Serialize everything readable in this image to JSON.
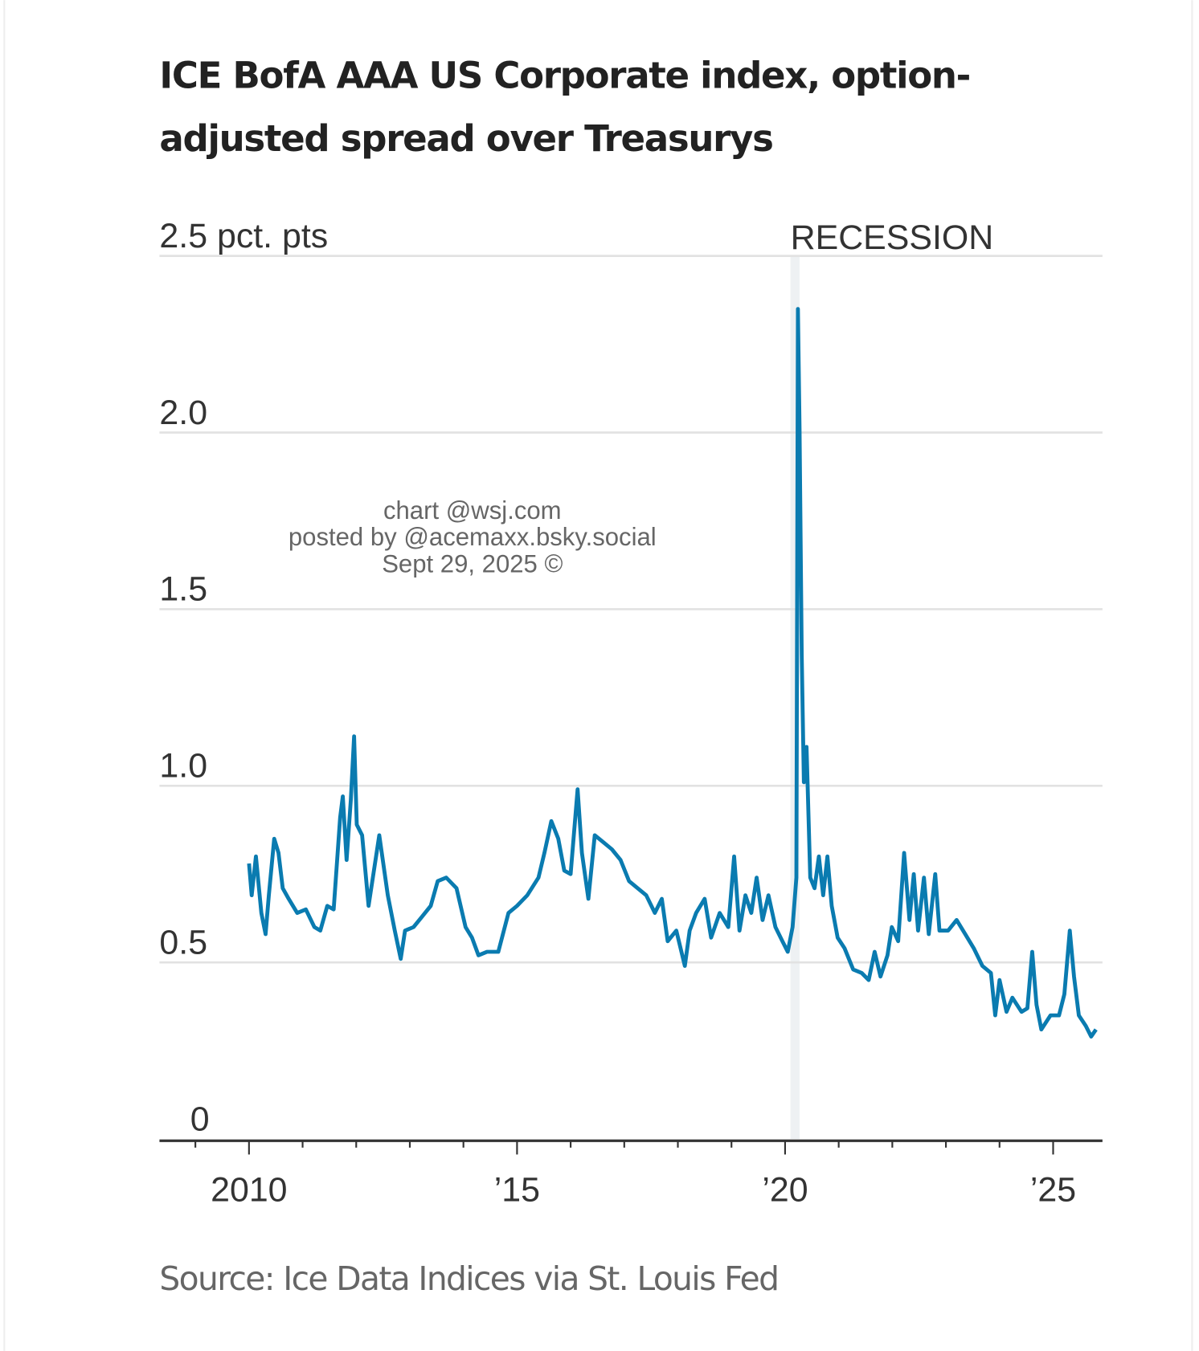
{
  "chart_data": {
    "type": "line",
    "title_lines": [
      "ICE BofA AAA US Corporate index, option-",
      "adjusted spread over Treasurys"
    ],
    "ylabel_unit": "pct. pts",
    "y_ticks": [
      0,
      0.5,
      1.0,
      1.5,
      2.0,
      2.5
    ],
    "y_tick_labels": [
      "0",
      "0.5",
      "1.0",
      "1.5",
      "2.0",
      "2.5 pct. pts"
    ],
    "ylim": [
      0,
      2.5
    ],
    "xlim": [
      2008.33,
      2025.92
    ],
    "x_ticks": [
      2010,
      2015,
      2020,
      2025
    ],
    "x_tick_labels": [
      "2010",
      "’15",
      "’20",
      "’25"
    ],
    "x_minor_ticks_every": 1,
    "grid": true,
    "recession": {
      "label": "RECESSION",
      "start": 2020.1,
      "end": 2020.27
    },
    "series": [
      {
        "name": "AAA option-adjusted spread",
        "color": "#0a7bb0",
        "points": [
          [
            2010.0,
            0.78
          ],
          [
            2010.05,
            0.69
          ],
          [
            2010.13,
            0.8
          ],
          [
            2010.23,
            0.64
          ],
          [
            2010.31,
            0.58
          ],
          [
            2010.37,
            0.69
          ],
          [
            2010.47,
            0.85
          ],
          [
            2010.55,
            0.81
          ],
          [
            2010.63,
            0.71
          ],
          [
            2010.74,
            0.68
          ],
          [
            2010.9,
            0.64
          ],
          [
            2011.06,
            0.65
          ],
          [
            2011.22,
            0.6
          ],
          [
            2011.33,
            0.59
          ],
          [
            2011.46,
            0.66
          ],
          [
            2011.58,
            0.65
          ],
          [
            2011.7,
            0.91
          ],
          [
            2011.75,
            0.97
          ],
          [
            2011.82,
            0.79
          ],
          [
            2011.9,
            0.96
          ],
          [
            2011.96,
            1.14
          ],
          [
            2012.01,
            0.89
          ],
          [
            2012.11,
            0.86
          ],
          [
            2012.23,
            0.66
          ],
          [
            2012.43,
            0.86
          ],
          [
            2012.59,
            0.69
          ],
          [
            2012.72,
            0.59
          ],
          [
            2012.83,
            0.51
          ],
          [
            2012.91,
            0.59
          ],
          [
            2013.07,
            0.6
          ],
          [
            2013.23,
            0.63
          ],
          [
            2013.39,
            0.66
          ],
          [
            2013.52,
            0.73
          ],
          [
            2013.68,
            0.74
          ],
          [
            2013.87,
            0.71
          ],
          [
            2014.04,
            0.6
          ],
          [
            2014.16,
            0.57
          ],
          [
            2014.28,
            0.52
          ],
          [
            2014.44,
            0.53
          ],
          [
            2014.65,
            0.53
          ],
          [
            2014.84,
            0.64
          ],
          [
            2015.0,
            0.66
          ],
          [
            2015.19,
            0.69
          ],
          [
            2015.4,
            0.74
          ],
          [
            2015.51,
            0.81
          ],
          [
            2015.64,
            0.9
          ],
          [
            2015.77,
            0.85
          ],
          [
            2015.88,
            0.76
          ],
          [
            2016.0,
            0.75
          ],
          [
            2016.13,
            0.99
          ],
          [
            2016.21,
            0.81
          ],
          [
            2016.33,
            0.68
          ],
          [
            2016.45,
            0.86
          ],
          [
            2016.61,
            0.84
          ],
          [
            2016.77,
            0.82
          ],
          [
            2016.93,
            0.79
          ],
          [
            2017.09,
            0.73
          ],
          [
            2017.25,
            0.71
          ],
          [
            2017.41,
            0.69
          ],
          [
            2017.57,
            0.64
          ],
          [
            2017.7,
            0.68
          ],
          [
            2017.81,
            0.56
          ],
          [
            2017.97,
            0.59
          ],
          [
            2018.13,
            0.49
          ],
          [
            2018.22,
            0.59
          ],
          [
            2018.34,
            0.64
          ],
          [
            2018.5,
            0.68
          ],
          [
            2018.62,
            0.57
          ],
          [
            2018.78,
            0.64
          ],
          [
            2018.94,
            0.6
          ],
          [
            2019.05,
            0.8
          ],
          [
            2019.15,
            0.59
          ],
          [
            2019.26,
            0.69
          ],
          [
            2019.37,
            0.64
          ],
          [
            2019.47,
            0.74
          ],
          [
            2019.58,
            0.62
          ],
          [
            2019.69,
            0.69
          ],
          [
            2019.82,
            0.6
          ],
          [
            2019.95,
            0.56
          ],
          [
            2020.05,
            0.53
          ],
          [
            2020.14,
            0.6
          ],
          [
            2020.21,
            0.74
          ],
          [
            2020.24,
            2.35
          ],
          [
            2020.27,
            2.01
          ],
          [
            2020.31,
            1.37
          ],
          [
            2020.35,
            1.01
          ],
          [
            2020.4,
            1.11
          ],
          [
            2020.47,
            0.74
          ],
          [
            2020.55,
            0.71
          ],
          [
            2020.63,
            0.8
          ],
          [
            2020.71,
            0.69
          ],
          [
            2020.79,
            0.8
          ],
          [
            2020.87,
            0.66
          ],
          [
            2020.98,
            0.57
          ],
          [
            2021.11,
            0.54
          ],
          [
            2021.27,
            0.48
          ],
          [
            2021.43,
            0.47
          ],
          [
            2021.56,
            0.45
          ],
          [
            2021.67,
            0.53
          ],
          [
            2021.78,
            0.46
          ],
          [
            2021.91,
            0.52
          ],
          [
            2021.99,
            0.6
          ],
          [
            2022.11,
            0.56
          ],
          [
            2022.22,
            0.81
          ],
          [
            2022.32,
            0.62
          ],
          [
            2022.4,
            0.75
          ],
          [
            2022.48,
            0.59
          ],
          [
            2022.59,
            0.74
          ],
          [
            2022.68,
            0.58
          ],
          [
            2022.8,
            0.75
          ],
          [
            2022.88,
            0.59
          ],
          [
            2023.04,
            0.59
          ],
          [
            2023.2,
            0.62
          ],
          [
            2023.36,
            0.58
          ],
          [
            2023.52,
            0.54
          ],
          [
            2023.68,
            0.49
          ],
          [
            2023.84,
            0.47
          ],
          [
            2023.92,
            0.35
          ],
          [
            2024.0,
            0.45
          ],
          [
            2024.13,
            0.36
          ],
          [
            2024.24,
            0.4
          ],
          [
            2024.41,
            0.36
          ],
          [
            2024.52,
            0.37
          ],
          [
            2024.61,
            0.53
          ],
          [
            2024.69,
            0.38
          ],
          [
            2024.78,
            0.31
          ],
          [
            2024.95,
            0.35
          ],
          [
            2025.11,
            0.35
          ],
          [
            2025.21,
            0.41
          ],
          [
            2025.31,
            0.59
          ],
          [
            2025.39,
            0.46
          ],
          [
            2025.48,
            0.35
          ],
          [
            2025.61,
            0.32
          ],
          [
            2025.71,
            0.29
          ],
          [
            2025.8,
            0.31
          ]
        ]
      }
    ],
    "source": "Source: Ice Data Indices via St. Louis Fed"
  },
  "watermark": {
    "lines": [
      "chart @wsj.com",
      "posted by @acemaxx.bsky.social",
      "Sept 29, 2025 ©"
    ]
  }
}
